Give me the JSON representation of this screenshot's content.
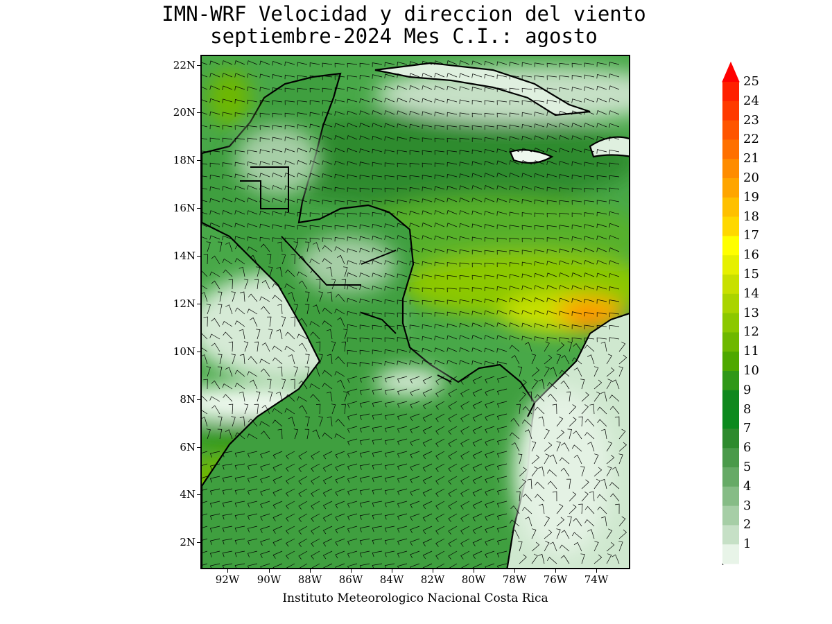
{
  "title": {
    "line1": "IMN-WRF Velocidad y direccion del viento",
    "line2": "septiembre-2024 Mes C.I.: agosto"
  },
  "footer": "Instituto Meteorologico Nacional Costa Rica",
  "map": {
    "lat_range": [
      1,
      22.4
    ],
    "lon_range": [
      -93,
      -72.6
    ],
    "lat_ticks": [
      "22N",
      "20N",
      "18N",
      "16N",
      "14N",
      "12N",
      "10N",
      "8N",
      "6N",
      "4N",
      "2N"
    ],
    "lon_ticks": [
      "92W",
      "90W",
      "88W",
      "86W",
      "84W",
      "82W",
      "80W",
      "78W",
      "76W",
      "74W"
    ],
    "field": "wind speed (m/s) shaded, wind barbs overlay",
    "colors": {
      "land_light": "#e8f5e8",
      "sea_mid": "#48a848",
      "sea_dark": "#2e8b2e",
      "sea_yellowgreen": "#8cc800",
      "max_orange": "#ff8c00"
    }
  },
  "colorbar": {
    "labels": [
      "25",
      "24",
      "23",
      "22",
      "21",
      "20",
      "19",
      "18",
      "17",
      "16",
      "15",
      "14",
      "13",
      "12",
      "11",
      "10",
      "9",
      "8",
      "7",
      "6",
      "5",
      "4",
      "3",
      "2",
      "1"
    ],
    "colors": [
      "#ff2000",
      "#ff3a00",
      "#ff5500",
      "#ff7000",
      "#ff8c00",
      "#ffa500",
      "#ffc000",
      "#ffd800",
      "#ffff00",
      "#e6f000",
      "#c8e000",
      "#aad400",
      "#8cc800",
      "#6eb800",
      "#4ea800",
      "#309818",
      "#10881e",
      "#0c8a1e",
      "#2e8b2e",
      "#4a9a4a",
      "#66aa66",
      "#86bc86",
      "#a6cea6",
      "#c6e0c6",
      "#e8f4e8"
    ]
  }
}
